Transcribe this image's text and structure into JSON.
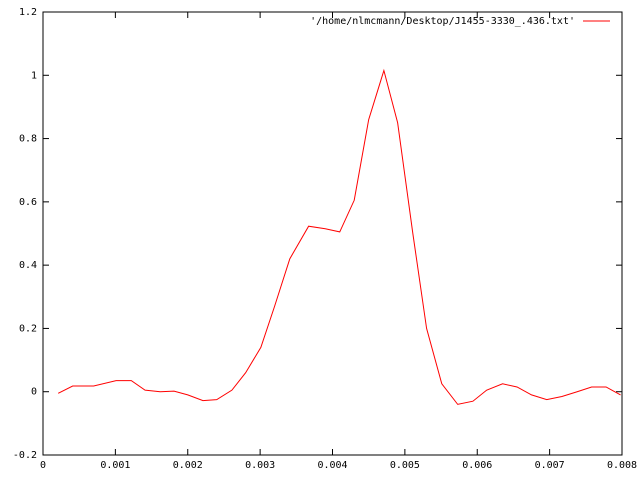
{
  "chart_data": {
    "type": "line",
    "series": [
      {
        "name": "'/home/nlmcmann/Desktop/J1455-3330_.436.txt'",
        "color": "#ff0000",
        "x": [
          0.00021,
          0.00041,
          0.0007,
          0.00101,
          0.00122,
          0.00141,
          0.00162,
          0.00181,
          0.002,
          0.00221,
          0.0024,
          0.00261,
          0.0028,
          0.00301,
          0.0032,
          0.00341,
          0.00367,
          0.0039,
          0.0041,
          0.0043,
          0.0045,
          0.00471,
          0.0049,
          0.00511,
          0.0053,
          0.00551,
          0.00573,
          0.00594,
          0.00613,
          0.00635,
          0.00655,
          0.00675,
          0.00696,
          0.00717,
          0.00738,
          0.00758,
          0.00778,
          0.00798
        ],
        "values": [
          -0.005,
          0.018,
          0.018,
          0.035,
          0.035,
          0.005,
          0.0,
          0.002,
          -0.01,
          -0.028,
          -0.025,
          0.005,
          0.06,
          0.14,
          0.27,
          0.42,
          0.523,
          0.515,
          0.505,
          0.605,
          0.86,
          1.015,
          0.85,
          0.5,
          0.2,
          0.025,
          -0.04,
          -0.03,
          0.005,
          0.025,
          0.015,
          -0.01,
          -0.025,
          -0.015,
          0.0,
          0.015,
          0.015,
          -0.01
        ]
      }
    ],
    "xlim": [
      0,
      0.008
    ],
    "xticks": [
      0,
      0.001,
      0.002,
      0.003,
      0.004,
      0.005,
      0.006,
      0.007,
      0.008
    ],
    "ylim": [
      -0.2,
      1.2
    ],
    "yticks": [
      -0.2,
      0,
      0.2,
      0.4,
      0.6,
      0.8,
      1,
      1.2
    ],
    "legend": "top-right"
  }
}
